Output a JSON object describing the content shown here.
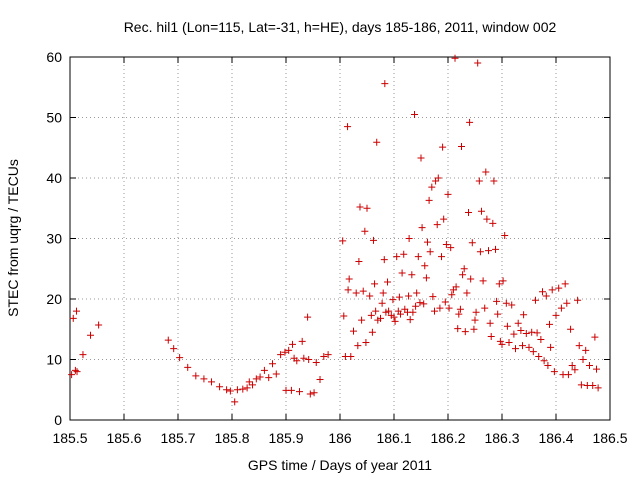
{
  "chart_data": {
    "type": "scatter",
    "title": "Rec. hil1 (Lon=115, Lat=-31, h=HE), days 185-186, 2011, window 002",
    "xlabel": "GPS time / Days of year 2011",
    "ylabel": "STEC from uqrg / TECUs",
    "xlim": [
      185.5,
      186.5
    ],
    "ylim": [
      0,
      60
    ],
    "xticks": [
      "185.5",
      "185.6",
      "185.7",
      "185.8",
      "185.9",
      "186",
      "186.1",
      "186.2",
      "186.3",
      "186.4",
      "186.5"
    ],
    "yticks": [
      "0",
      "10",
      "20",
      "30",
      "40",
      "50",
      "60"
    ],
    "grid": true,
    "marker": "+",
    "color": "#cc0000",
    "series": [
      {
        "points": [
          [
            185.503,
            7.5
          ],
          [
            185.506,
            16.8
          ],
          [
            185.51,
            8.2
          ],
          [
            185.512,
            18.0
          ],
          [
            185.513,
            8.0
          ],
          [
            185.524,
            10.8
          ],
          [
            185.538,
            14.0
          ],
          [
            185.553,
            15.7
          ],
          [
            185.682,
            13.2
          ],
          [
            185.692,
            11.8
          ],
          [
            185.703,
            10.3
          ],
          [
            185.718,
            8.7
          ],
          [
            185.733,
            7.3
          ],
          [
            185.748,
            6.8
          ],
          [
            185.762,
            6.3
          ],
          [
            185.777,
            5.5
          ],
          [
            185.79,
            5.0
          ],
          [
            185.797,
            4.8
          ],
          [
            185.805,
            3.0
          ],
          [
            185.81,
            5.0
          ],
          [
            185.82,
            5.1
          ],
          [
            185.828,
            5.3
          ],
          [
            185.832,
            6.3
          ],
          [
            185.838,
            5.8
          ],
          [
            185.845,
            6.8
          ],
          [
            185.852,
            7.1
          ],
          [
            185.86,
            8.2
          ],
          [
            185.868,
            7.0
          ],
          [
            185.875,
            9.3
          ],
          [
            185.882,
            7.6
          ],
          [
            185.89,
            10.8
          ],
          [
            185.898,
            11.2
          ],
          [
            185.9,
            4.9
          ],
          [
            185.905,
            11.5
          ],
          [
            185.91,
            4.9
          ],
          [
            185.912,
            12.5
          ],
          [
            185.915,
            10.2
          ],
          [
            185.92,
            9.8
          ],
          [
            185.925,
            4.7
          ],
          [
            185.93,
            13.0
          ],
          [
            185.933,
            10.2
          ],
          [
            185.94,
            17.0
          ],
          [
            185.942,
            10.0
          ],
          [
            185.945,
            4.3
          ],
          [
            185.952,
            4.5
          ],
          [
            185.956,
            9.5
          ],
          [
            185.963,
            6.7
          ],
          [
            185.97,
            10.5
          ],
          [
            185.978,
            10.8
          ],
          [
            186.005,
            29.6
          ],
          [
            186.007,
            17.2
          ],
          [
            186.01,
            10.5
          ],
          [
            186.014,
            48.5
          ],
          [
            186.015,
            21.5
          ],
          [
            186.017,
            23.3
          ],
          [
            186.02,
            10.5
          ],
          [
            186.025,
            14.7
          ],
          [
            186.03,
            21.0
          ],
          [
            186.033,
            12.3
          ],
          [
            186.035,
            26.2
          ],
          [
            186.037,
            35.2
          ],
          [
            186.04,
            16.5
          ],
          [
            186.043,
            21.3
          ],
          [
            186.046,
            31.2
          ],
          [
            186.048,
            12.8
          ],
          [
            186.05,
            35.0
          ],
          [
            186.055,
            20.5
          ],
          [
            186.058,
            17.3
          ],
          [
            186.06,
            14.5
          ],
          [
            186.062,
            29.7
          ],
          [
            186.064,
            22.5
          ],
          [
            186.066,
            18.0
          ],
          [
            186.068,
            45.9
          ],
          [
            186.07,
            16.5
          ],
          [
            186.075,
            16.8
          ],
          [
            186.078,
            19.3
          ],
          [
            186.08,
            21.0
          ],
          [
            186.082,
            26.5
          ],
          [
            186.083,
            55.6
          ],
          [
            186.085,
            17.8
          ],
          [
            186.088,
            22.8
          ],
          [
            186.09,
            18.0
          ],
          [
            186.095,
            17.3
          ],
          [
            186.098,
            19.9
          ],
          [
            186.1,
            17.0
          ],
          [
            186.102,
            16.3
          ],
          [
            186.105,
            27.0
          ],
          [
            186.108,
            18.0
          ],
          [
            186.11,
            20.3
          ],
          [
            186.112,
            17.5
          ],
          [
            186.115,
            24.3
          ],
          [
            186.118,
            27.4
          ],
          [
            186.12,
            18.3
          ],
          [
            186.125,
            17.8
          ],
          [
            186.127,
            20.5
          ],
          [
            186.128,
            30.0
          ],
          [
            186.13,
            16.6
          ],
          [
            186.133,
            24.0
          ],
          [
            186.135,
            17.8
          ],
          [
            186.138,
            50.5
          ],
          [
            186.14,
            18.8
          ],
          [
            186.142,
            21.0
          ],
          [
            186.145,
            27.0
          ],
          [
            186.148,
            19.4
          ],
          [
            186.15,
            43.3
          ],
          [
            186.152,
            31.8
          ],
          [
            186.155,
            19.2
          ],
          [
            186.157,
            25.5
          ],
          [
            186.16,
            23.5
          ],
          [
            186.162,
            29.4
          ],
          [
            186.165,
            36.3
          ],
          [
            186.167,
            27.8
          ],
          [
            186.17,
            38.5
          ],
          [
            186.172,
            20.4
          ],
          [
            186.175,
            18.0
          ],
          [
            186.177,
            39.5
          ],
          [
            186.18,
            32.3
          ],
          [
            186.182,
            40.0
          ],
          [
            186.185,
            18.5
          ],
          [
            186.188,
            27.0
          ],
          [
            186.19,
            45.1
          ],
          [
            186.192,
            33.2
          ],
          [
            186.195,
            19.5
          ],
          [
            186.197,
            29.0
          ],
          [
            186.2,
            37.3
          ],
          [
            186.202,
            18.5
          ],
          [
            186.205,
            28.5
          ],
          [
            186.207,
            20.7
          ],
          [
            186.21,
            21.5
          ],
          [
            186.213,
            59.8
          ],
          [
            186.215,
            22.0
          ],
          [
            186.218,
            15.1
          ],
          [
            186.22,
            17.5
          ],
          [
            186.223,
            18.3
          ],
          [
            186.225,
            45.2
          ],
          [
            186.227,
            24.0
          ],
          [
            186.23,
            25.0
          ],
          [
            186.232,
            14.6
          ],
          [
            186.235,
            21.0
          ],
          [
            186.238,
            34.3
          ],
          [
            186.24,
            49.2
          ],
          [
            186.242,
            23.3
          ],
          [
            186.245,
            29.3
          ],
          [
            186.248,
            15.0
          ],
          [
            186.25,
            16.5
          ],
          [
            186.252,
            17.8
          ],
          [
            186.255,
            59.0
          ],
          [
            186.258,
            39.5
          ],
          [
            186.26,
            27.8
          ],
          [
            186.262,
            34.5
          ],
          [
            186.265,
            23.0
          ],
          [
            186.268,
            18.5
          ],
          [
            186.27,
            41.0
          ],
          [
            186.272,
            33.2
          ],
          [
            186.275,
            28.0
          ],
          [
            186.278,
            16.0
          ],
          [
            186.28,
            13.8
          ],
          [
            186.283,
            32.5
          ],
          [
            186.285,
            39.5
          ],
          [
            186.288,
            28.2
          ],
          [
            186.29,
            19.6
          ],
          [
            186.292,
            17.5
          ],
          [
            186.295,
            22.5
          ],
          [
            186.297,
            13.0
          ],
          [
            186.3,
            12.5
          ],
          [
            186.302,
            23.0
          ],
          [
            186.305,
            30.5
          ],
          [
            186.308,
            19.3
          ],
          [
            186.31,
            15.5
          ],
          [
            186.313,
            12.8
          ],
          [
            186.318,
            19.0
          ],
          [
            186.322,
            14.2
          ],
          [
            186.325,
            11.8
          ],
          [
            186.33,
            16.0
          ],
          [
            186.335,
            14.8
          ],
          [
            186.338,
            12.3
          ],
          [
            186.34,
            17.4
          ],
          [
            186.345,
            14.3
          ],
          [
            186.35,
            12.0
          ],
          [
            186.355,
            14.5
          ],
          [
            186.358,
            11.3
          ],
          [
            186.362,
            19.8
          ],
          [
            186.365,
            14.4
          ],
          [
            186.368,
            10.5
          ],
          [
            186.372,
            13.3
          ],
          [
            186.375,
            21.2
          ],
          [
            186.378,
            9.8
          ],
          [
            186.382,
            20.5
          ],
          [
            186.385,
            9.0
          ],
          [
            186.388,
            15.8
          ],
          [
            186.39,
            12.0
          ],
          [
            186.393,
            21.5
          ],
          [
            186.397,
            8.0
          ],
          [
            186.4,
            17.3
          ],
          [
            186.405,
            21.8
          ],
          [
            186.41,
            18.5
          ],
          [
            186.413,
            7.5
          ],
          [
            186.417,
            22.5
          ],
          [
            186.42,
            19.3
          ],
          [
            186.423,
            7.5
          ],
          [
            186.427,
            15.0
          ],
          [
            186.43,
            9.0
          ],
          [
            186.435,
            8.3
          ],
          [
            186.44,
            19.8
          ],
          [
            186.443,
            12.3
          ],
          [
            186.447,
            5.8
          ],
          [
            186.45,
            10.0
          ],
          [
            186.455,
            11.5
          ],
          [
            186.458,
            5.7
          ],
          [
            186.462,
            9.0
          ],
          [
            186.468,
            5.7
          ],
          [
            186.472,
            13.7
          ],
          [
            186.475,
            8.4
          ],
          [
            186.478,
            5.3
          ]
        ]
      }
    ]
  }
}
